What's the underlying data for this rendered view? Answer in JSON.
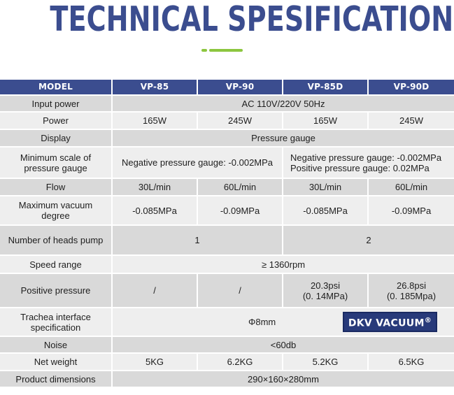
{
  "title": "TECHNICAL SPESIFICATION",
  "header": {
    "label": "MODEL",
    "models": [
      "VP-85",
      "VP-90",
      "VP-85D",
      "VP-90D"
    ]
  },
  "rows": {
    "input_power": {
      "label": "Input power",
      "value": "AC 110V/220V 50Hz"
    },
    "power": {
      "label": "Power",
      "values": [
        "165W",
        "245W",
        "165W",
        "245W"
      ]
    },
    "display": {
      "label": "Display",
      "value": "Pressure gauge"
    },
    "min_scale": {
      "label": "Minimum scale of pressure gauge",
      "single": "Negative pressure gauge: -0.002MPa",
      "dual_negative": "Negative pressure gauge: -0.002MPa",
      "dual_positive": "Positive pressure gauge: 0.02MPa"
    },
    "flow": {
      "label": "Flow",
      "values": [
        "30L/min",
        "60L/min",
        "30L/min",
        "60L/min"
      ]
    },
    "max_vacuum": {
      "label": "Maximum vacuum degree",
      "values": [
        "-0.085MPa",
        "-0.09MPa",
        "-0.085MPa",
        "-0.09MPa"
      ]
    },
    "heads": {
      "label": "Number of heads pump",
      "single": "1",
      "dual": "2"
    },
    "speed": {
      "label": "Speed range",
      "value": "≥ 1360rpm"
    },
    "positive_pressure": {
      "label": "Positive pressure",
      "values": [
        "/",
        "/"
      ],
      "vp85d": [
        "20.3psi",
        "(0. 14MPa)"
      ],
      "vp90d": [
        "26.8psi",
        "(0. 185Mpa)"
      ]
    },
    "trachea": {
      "label": "Trachea interface specification",
      "value": "Φ8mm",
      "logo": "DKV VACUUM",
      "logo_mark": "®"
    },
    "noise": {
      "label": "Noise",
      "value": "<60db"
    },
    "net_weight": {
      "label": "Net weight",
      "values": [
        "5KG",
        "6.2KG",
        "5.2KG",
        "6.5KG"
      ]
    },
    "dimensions": {
      "label": "Product dimensions",
      "value": "290×160×280mm"
    }
  },
  "colors": {
    "header_bg": "#3b4d8f",
    "accent": "#8cc63f",
    "row_dark": "#d9d9d9",
    "row_light": "#eeeeee"
  }
}
